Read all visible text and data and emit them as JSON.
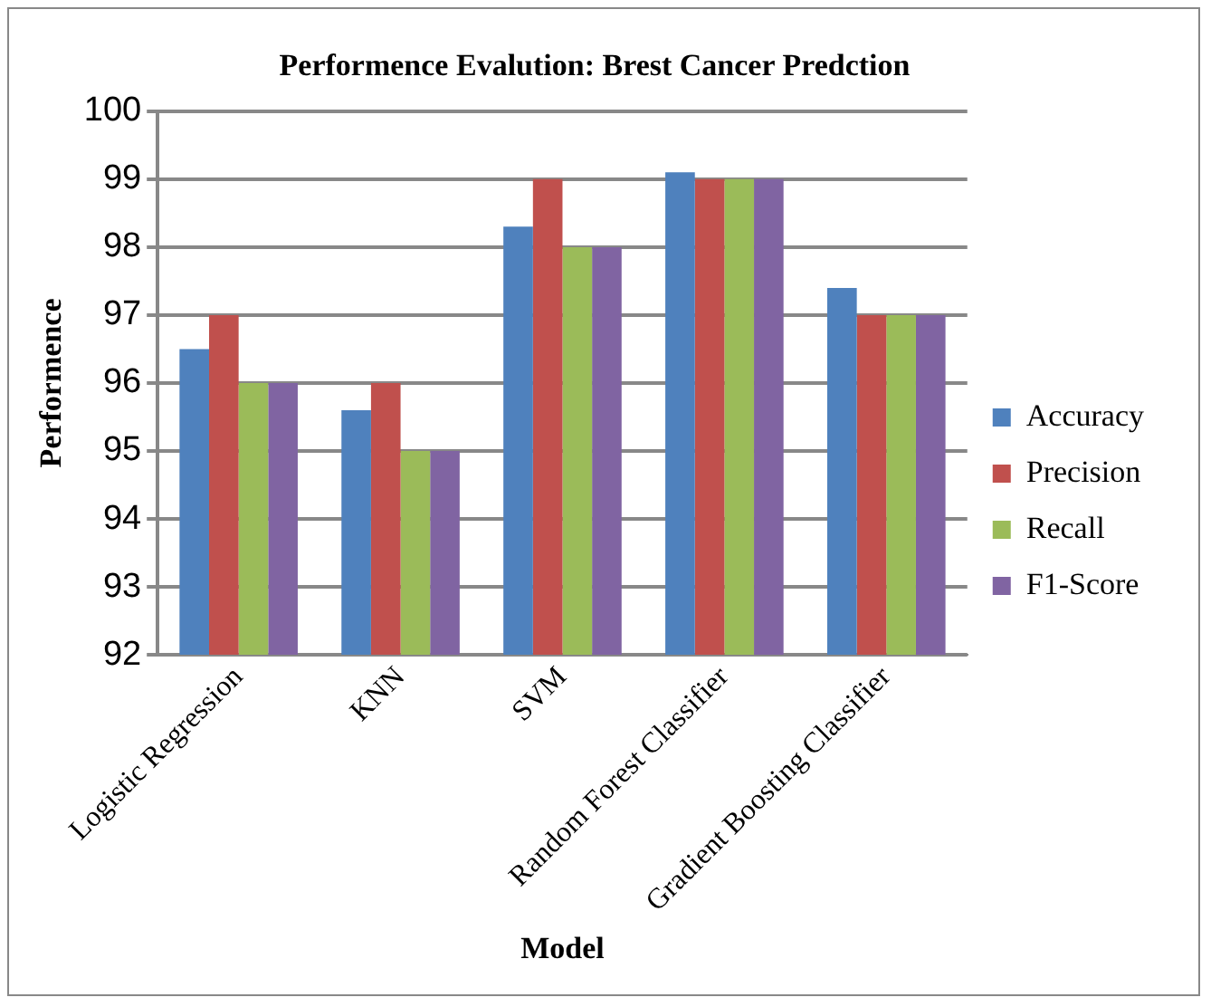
{
  "chart_data": {
    "type": "bar",
    "title": "Performence Evalution: Brest Cancer Predction",
    "xlabel": "Model",
    "ylabel": "Performence",
    "categories": [
      "Logistic Regression",
      "KNN",
      "SVM",
      "Random Forest Classifier",
      "Gradient Boosting Classifier"
    ],
    "series": [
      {
        "name": "Accuracy",
        "color": "#4f81bd",
        "values": [
          96.5,
          95.6,
          98.3,
          99.1,
          97.4
        ]
      },
      {
        "name": "Precision",
        "color": "#c0504d",
        "values": [
          97,
          96,
          99,
          99,
          97
        ]
      },
      {
        "name": "Recall",
        "color": "#9bbb59",
        "values": [
          96,
          95,
          98,
          99,
          97
        ]
      },
      {
        "name": "F1-Score",
        "color": "#8064a2",
        "values": [
          96,
          95,
          98,
          99,
          97
        ]
      }
    ],
    "ylim": [
      92,
      100
    ],
    "yticks": [
      92,
      93,
      94,
      95,
      96,
      97,
      98,
      99,
      100
    ],
    "grid": "y",
    "legend": "right"
  }
}
